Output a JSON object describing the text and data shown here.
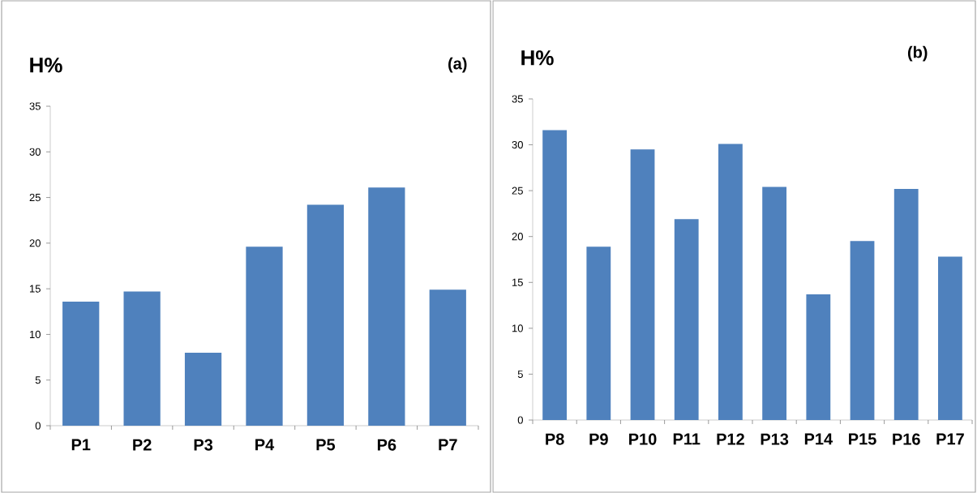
{
  "chart_data": [
    {
      "type": "bar",
      "title": "(a)",
      "ylabel": "H%",
      "categories": [
        "P1",
        "P2",
        "P3",
        "P4",
        "P5",
        "P6",
        "P7"
      ],
      "values": [
        13.6,
        14.7,
        8.0,
        19.6,
        24.2,
        26.1,
        14.9
      ],
      "color": "#4f81bd",
      "ylim": [
        0,
        35
      ],
      "yticks": [
        0,
        5,
        10,
        15,
        20,
        25,
        30,
        35
      ],
      "grid": false
    },
    {
      "type": "bar",
      "title": "(b)",
      "ylabel": "H%",
      "categories": [
        "P8",
        "P9",
        "P10",
        "P11",
        "P12",
        "P13",
        "P14",
        "P15",
        "P16",
        "P17"
      ],
      "values": [
        31.6,
        18.9,
        29.5,
        21.9,
        30.1,
        25.4,
        13.7,
        19.5,
        25.2,
        17.8
      ],
      "color": "#4f81bd",
      "ylim": [
        0,
        35
      ],
      "yticks": [
        0,
        5,
        10,
        15,
        20,
        25,
        30,
        35
      ],
      "grid": false
    }
  ]
}
